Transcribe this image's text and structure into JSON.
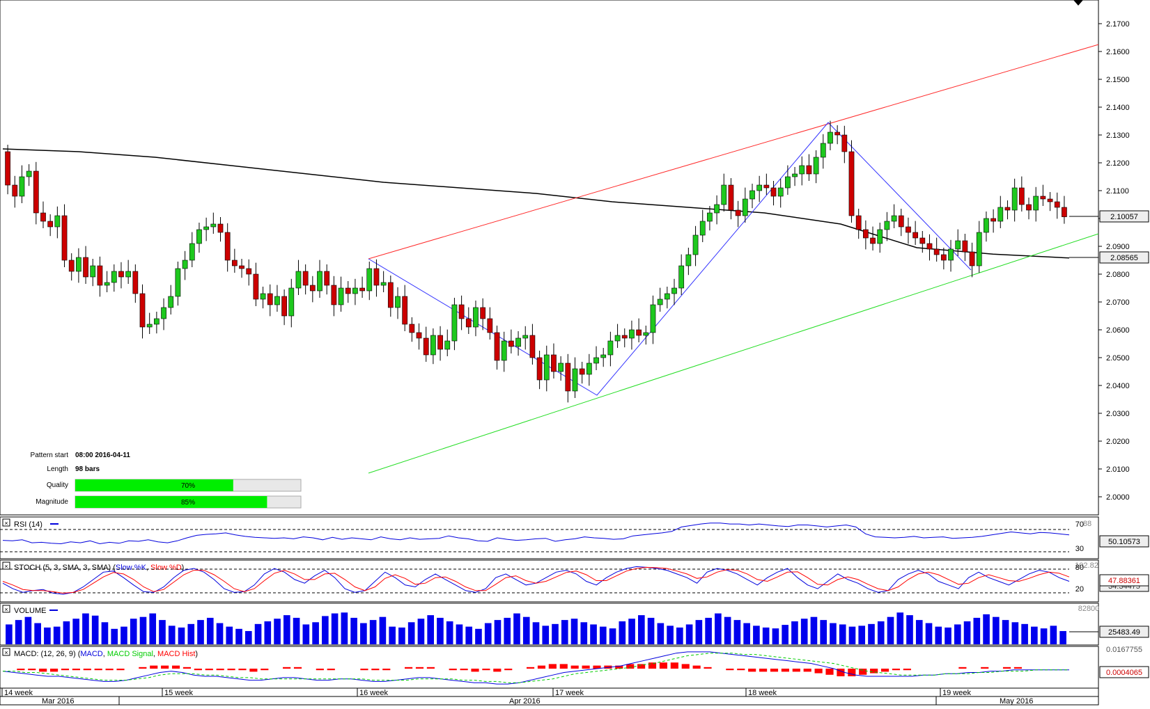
{
  "colors": {
    "bull": "#1ec81e",
    "bear": "#cc0000",
    "wick": "#000000",
    "zigzag": "#3333ff",
    "resistance": "#ff2a2a",
    "support": "#22dd22",
    "ma": "#000000",
    "rsi": "#0000dd",
    "stoch_k": "#0000dd",
    "stoch_d": "#ff0000",
    "volume": "#0000ee",
    "macd": "#0000dd",
    "macd_signal": "#00cc00",
    "macd_hist": "#ff0000",
    "progress": "#00ee00"
  },
  "chart_data": {
    "type": "candlestick",
    "price_axis": {
      "ticks": [
        "2.1700",
        "2.1600",
        "2.1500",
        "2.1400",
        "2.1300",
        "2.1200",
        "2.1100",
        "2.1000",
        "2.0900",
        "2.0800",
        "2.0700",
        "2.0600",
        "2.0500",
        "2.0400",
        "2.0300",
        "2.0200",
        "2.0100",
        "2.0000"
      ],
      "last_price_label": "2.10057",
      "ma_label": "2.08565"
    },
    "candles_close": [
      2.112,
      2.108,
      2.115,
      2.117,
      2.102,
      2.099,
      2.097,
      2.101,
      2.085,
      2.081,
      2.086,
      2.079,
      2.083,
      2.076,
      2.077,
      2.081,
      2.079,
      2.081,
      2.073,
      2.061,
      2.062,
      2.064,
      2.068,
      2.072,
      2.082,
      2.085,
      2.091,
      2.096,
      2.097,
      2.098,
      2.095,
      2.085,
      2.083,
      2.082,
      2.08,
      2.071,
      2.073,
      2.069,
      2.072,
      2.065,
      2.075,
      2.081,
      2.076,
      2.074,
      2.081,
      2.076,
      2.069,
      2.075,
      2.073,
      2.075,
      2.074,
      2.082,
      2.076,
      2.077,
      2.068,
      2.072,
      2.062,
      2.059,
      2.057,
      2.051,
      2.058,
      2.053,
      2.056,
      2.069,
      2.064,
      2.061,
      2.068,
      2.064,
      2.059,
      2.049,
      2.056,
      2.054,
      2.057,
      2.058,
      2.05,
      2.042,
      2.051,
      2.045,
      2.048,
      2.038,
      2.046,
      2.044,
      2.048,
      2.05,
      2.051,
      2.056,
      2.058,
      2.057,
      2.06,
      2.058,
      2.059,
      2.069,
      2.071,
      2.073,
      2.075,
      2.083,
      2.087,
      2.094,
      2.099,
      2.102,
      2.105,
      2.112,
      2.103,
      2.101,
      2.107,
      2.11,
      2.112,
      2.111,
      2.108,
      2.111,
      2.115,
      2.116,
      2.119,
      2.116,
      2.122,
      2.127,
      2.131,
      2.13,
      2.124,
      2.101,
      2.096,
      2.093,
      2.091,
      2.096,
      2.099,
      2.101,
      2.097,
      2.095,
      2.093,
      2.091,
      2.089,
      2.087,
      2.085,
      2.089,
      2.092,
      2.088,
      2.083,
      2.095,
      2.1,
      2.099,
      2.104,
      2.103,
      2.111,
      2.105,
      2.103,
      2.108,
      2.107,
      2.106,
      2.104,
      2.1006
    ],
    "ma_close": [
      2.125,
      2.124,
      2.122,
      2.119,
      2.116,
      2.113,
      2.111,
      2.109,
      2.106,
      2.104,
      2.102,
      2.098,
      2.0895,
      2.0872,
      2.0858
    ],
    "resistance_line": {
      "from": [
        2.0855,
        "2016-04-11 08:00"
      ],
      "to": [
        2.1625,
        "end"
      ]
    },
    "support_line": {
      "from": [
        2.0085,
        "2016-04-11 08:00"
      ],
      "to": [
        2.0945,
        "end"
      ]
    },
    "zigzag": [
      2.0855,
      2.0365,
      2.1345,
      2.0815
    ],
    "x_axis": {
      "weeks": [
        "14 week",
        "15 week",
        "16 week",
        "17 week",
        "18 week",
        "19 week"
      ],
      "months": [
        "Mar 2016",
        "Apr 2016",
        "May 2016"
      ]
    },
    "pattern_info": {
      "pattern_start_label": "Pattern start",
      "pattern_start_value": "08:00 2016-04-11",
      "length_label": "Length",
      "length_value": "98 bars",
      "quality_label": "Quality",
      "quality_value": "70%",
      "quality_fraction": 0.7,
      "magnitude_label": "Magnitude",
      "magnitude_value": "85%",
      "magnitude_fraction": 0.85
    },
    "rsi": {
      "title": "RSI (14)",
      "levels": [
        "70",
        "30"
      ],
      "top_label": "88",
      "value_label": "50.10573",
      "values": [
        45,
        44,
        46,
        40,
        41,
        39,
        38,
        42,
        40,
        44,
        38,
        41,
        39,
        44,
        43,
        46,
        42,
        40,
        44,
        50,
        55,
        57,
        58,
        60,
        56,
        53,
        51,
        50,
        49,
        50,
        48,
        52,
        50,
        46,
        51,
        47,
        50,
        48,
        46,
        52,
        48,
        46,
        50,
        47,
        48,
        49,
        54,
        50,
        48,
        44,
        43,
        50,
        47,
        45,
        46,
        48,
        49,
        43,
        46,
        48,
        52,
        50,
        49,
        47,
        48,
        54,
        56,
        58,
        60,
        63,
        72,
        75,
        78,
        80,
        80,
        78,
        78,
        76,
        78,
        76,
        74,
        73,
        76,
        76,
        74,
        72,
        74,
        76,
        72,
        58,
        52,
        51,
        50,
        51,
        53,
        50,
        51,
        52,
        49,
        50,
        51,
        53,
        56,
        59,
        62,
        60,
        58,
        61,
        60,
        58,
        56
      ]
    },
    "stoch": {
      "title_prefix": "STOCH (5, 3, SMA, 3, SMA) (",
      "k_label": "Slow %K",
      "sep": ", ",
      "d_label": "Slow %D",
      "title_suffix": ")",
      "levels": [
        "80",
        "20"
      ],
      "top_label": "102.82",
      "k_value_label": "47.88361",
      "d_value_label": "34.34475",
      "k": [
        45,
        30,
        20,
        25,
        28,
        18,
        15,
        20,
        35,
        55,
        75,
        78,
        60,
        40,
        22,
        20,
        35,
        60,
        80,
        85,
        75,
        55,
        30,
        20,
        22,
        40,
        70,
        85,
        75,
        55,
        45,
        65,
        80,
        60,
        30,
        20,
        25,
        50,
        75,
        60,
        40,
        35,
        55,
        70,
        55,
        40,
        25,
        20,
        30,
        60,
        70,
        55,
        40,
        45,
        60,
        75,
        80,
        70,
        50,
        40,
        60,
        75,
        85,
        90,
        88,
        85,
        80,
        70,
        60,
        45,
        75,
        85,
        80,
        70,
        55,
        40,
        60,
        75,
        85,
        60,
        40,
        30,
        50,
        70,
        55,
        45,
        30,
        20,
        25,
        55,
        70,
        80,
        70,
        50,
        40,
        30,
        60,
        75,
        60,
        50,
        40,
        55,
        70,
        80,
        75,
        60,
        50
      ],
      "d": [
        50,
        40,
        28,
        25,
        25,
        22,
        18,
        20,
        28,
        45,
        62,
        74,
        70,
        55,
        35,
        22,
        28,
        48,
        68,
        80,
        80,
        68,
        50,
        30,
        22,
        30,
        52,
        72,
        80,
        70,
        55,
        55,
        70,
        72,
        55,
        35,
        25,
        35,
        58,
        68,
        58,
        42,
        45,
        60,
        62,
        50,
        35,
        25,
        25,
        42,
        60,
        65,
        52,
        45,
        50,
        62,
        74,
        78,
        68,
        52,
        52,
        65,
        78,
        85,
        88,
        87,
        85,
        78,
        70,
        58,
        62,
        75,
        82,
        80,
        70,
        55,
        50,
        62,
        75,
        76,
        60,
        42,
        40,
        55,
        62,
        55,
        42,
        30,
        25,
        35,
        55,
        70,
        75,
        68,
        55,
        42,
        45,
        60,
        68,
        60,
        52,
        50,
        58,
        68,
        75,
        72,
        62
      ]
    },
    "volume": {
      "title": "VOLUME",
      "top_label": "82800",
      "value_label": "25483.49",
      "values": [
        45,
        55,
        62,
        48,
        38,
        40,
        52,
        58,
        70,
        65,
        50,
        35,
        40,
        58,
        62,
        70,
        55,
        42,
        38,
        46,
        55,
        60,
        48,
        40,
        35,
        30,
        46,
        52,
        58,
        66,
        60,
        45,
        50,
        64,
        70,
        72,
        60,
        48,
        55,
        62,
        40,
        38,
        50,
        58,
        66,
        60,
        52,
        45,
        40,
        35,
        48,
        55,
        60,
        70,
        62,
        50,
        42,
        46,
        55,
        58,
        50,
        45,
        40,
        36,
        52,
        58,
        66,
        60,
        48,
        42,
        38,
        45,
        55,
        60,
        70,
        62,
        55,
        48,
        42,
        38,
        36,
        44,
        52,
        58,
        62,
        55,
        48,
        45,
        40,
        42,
        46,
        52,
        62,
        72,
        66,
        55,
        48,
        40,
        38,
        45,
        52,
        60,
        68,
        62,
        55,
        50,
        46,
        40,
        36,
        42,
        30
      ]
    },
    "macd": {
      "title_prefix": "MACD: (12, 26, 9) (",
      "macd_label": "MACD",
      "sep": ", ",
      "signal_label": "MACD Signal",
      "hist_label": "MACD Hist",
      "title_suffix": ")",
      "top_label": "0.0167755",
      "value_label": "0.0004065",
      "macd": [
        0,
        -1,
        -2,
        -3,
        -4,
        -4,
        -5,
        -6,
        -7,
        -8,
        -8,
        -7,
        -5,
        -3,
        -1,
        0,
        -1,
        -3,
        -4,
        -4,
        -5,
        -6,
        -7,
        -7,
        -6,
        -5,
        -5,
        -6,
        -7,
        -7,
        -6,
        -6,
        -7,
        -8,
        -8,
        -7,
        -6,
        -5,
        -5,
        -6,
        -7,
        -8,
        -9,
        -9,
        -10,
        -10,
        -9,
        -7,
        -5,
        -3,
        -1,
        0,
        1,
        2,
        3,
        4,
        6,
        8,
        10,
        12,
        14,
        15,
        15,
        15,
        14,
        13,
        12,
        11,
        10,
        9,
        8,
        7,
        6,
        4,
        2,
        -1,
        -3,
        -4,
        -4,
        -4,
        -4,
        -4,
        -3,
        -3,
        -2,
        -2,
        -1,
        -1,
        0,
        0,
        1,
        1,
        1,
        1,
        1,
        1
      ],
      "signal": [
        0,
        0,
        -1,
        -1,
        -2,
        -3,
        -4,
        -5,
        -6,
        -7,
        -7,
        -7,
        -6,
        -5,
        -3,
        -2,
        -2,
        -2,
        -3,
        -3,
        -4,
        -5,
        -5,
        -6,
        -6,
        -6,
        -6,
        -6,
        -6,
        -6,
        -6,
        -6,
        -6,
        -7,
        -7,
        -7,
        -7,
        -6,
        -6,
        -6,
        -6,
        -7,
        -7,
        -8,
        -8,
        -9,
        -9,
        -8,
        -7,
        -6,
        -4,
        -2,
        -1,
        0,
        1,
        2,
        3,
        5,
        6,
        8,
        10,
        12,
        13,
        14,
        14,
        14,
        13,
        13,
        12,
        11,
        10,
        9,
        8,
        7,
        6,
        4,
        2,
        0,
        -1,
        -2,
        -3,
        -3,
        -3,
        -3,
        -2,
        -2,
        -2,
        -1,
        -1,
        0,
        0,
        0,
        1,
        1,
        1,
        1
      ],
      "hist": [
        0,
        -1,
        -1,
        -2,
        -2,
        -1,
        -1,
        -1,
        -1,
        -1,
        -1,
        0,
        1,
        2,
        2,
        2,
        1,
        -1,
        -1,
        -1,
        -1,
        -1,
        -2,
        -1,
        0,
        1,
        1,
        0,
        -1,
        -1,
        0,
        0,
        -1,
        -1,
        -1,
        0,
        1,
        1,
        1,
        0,
        -1,
        -1,
        -2,
        -1,
        -2,
        -1,
        0,
        1,
        2,
        3,
        3,
        2,
        2,
        2,
        2,
        2,
        3,
        3,
        4,
        4,
        4,
        3,
        2,
        1,
        0,
        -1,
        -1,
        -2,
        -2,
        -2,
        -2,
        -2,
        -2,
        -3,
        -4,
        -5,
        -5,
        -4,
        -3,
        -2,
        -1,
        -1,
        0,
        0,
        0,
        0,
        1,
        0,
        1,
        0,
        1,
        1,
        0,
        0,
        0,
        0
      ]
    }
  }
}
